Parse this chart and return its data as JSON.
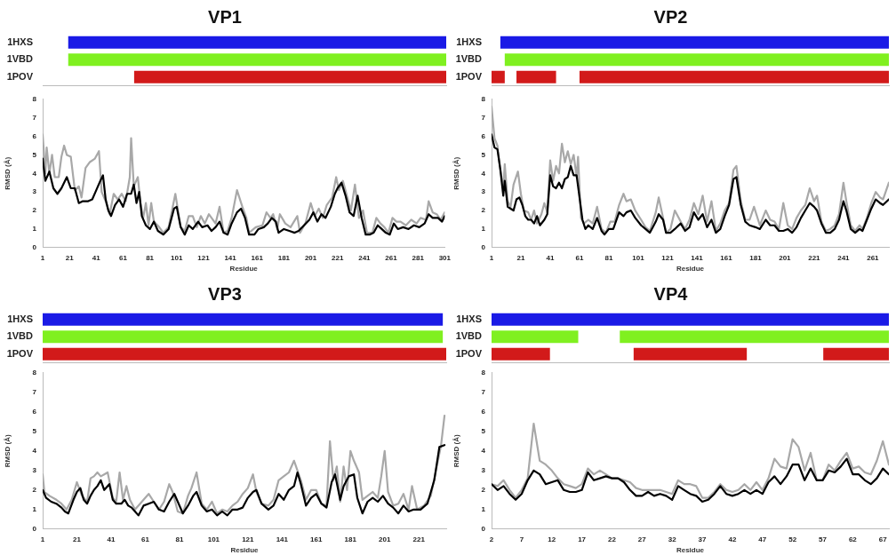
{
  "chart_data": [
    {
      "type": "bar",
      "title": "VP1",
      "orientation": "horizontal",
      "categories": [
        "1HXS",
        "1VBD",
        "1POV"
      ],
      "xlim": [
        1,
        301
      ],
      "tick_labels": "y",
      "legend": false,
      "grid": false,
      "series": [
        {
          "colors": [
            "#1a1ae6",
            "#80f020",
            "#d21a1a"
          ],
          "base": [
            20,
            20,
            69
          ],
          "values": [
            281,
            281,
            232
          ]
        }
      ]
    },
    {
      "type": "line",
      "xlabel": "Residue",
      "ylabel": "RMSD (Å)",
      "xlim": [
        1,
        301
      ],
      "xticks": [
        1,
        21,
        41,
        61,
        81,
        101,
        121,
        141,
        161,
        181,
        201,
        221,
        241,
        261,
        281,
        301
      ],
      "ylim": [
        0,
        8
      ],
      "yticks": [
        0,
        1,
        2,
        3,
        4,
        5,
        6,
        7,
        8
      ],
      "grid": false,
      "legend": false,
      "marker": "none",
      "series": [
        {
          "color": "#000000",
          "x": [
            1,
            3,
            6,
            9,
            12,
            15,
            19,
            22,
            25,
            28,
            31,
            35,
            38,
            41,
            44,
            46,
            48,
            50,
            52,
            55,
            58,
            61,
            64,
            67,
            69,
            71,
            73,
            75,
            78,
            81,
            84,
            87,
            91,
            95,
            99,
            101,
            104,
            107,
            110,
            113,
            117,
            120,
            124,
            127,
            130,
            133,
            136,
            139,
            142,
            146,
            149,
            152,
            155,
            159,
            162,
            166,
            169,
            172,
            175,
            177,
            181,
            185,
            189,
            192,
            196,
            200,
            203,
            206,
            209,
            212,
            216,
            219,
            221,
            224,
            227,
            230,
            233,
            236,
            239,
            242,
            245,
            248,
            251,
            254,
            257,
            260,
            263,
            266,
            270,
            274,
            278,
            282,
            286,
            289,
            292,
            296,
            299,
            301
          ],
          "values": [
            4.8,
            3.6,
            4.1,
            3.2,
            2.9,
            3.2,
            3.8,
            3.2,
            3.2,
            2.4,
            2.5,
            2.5,
            2.6,
            3.1,
            3.6,
            3.9,
            2.6,
            2.0,
            1.7,
            2.3,
            2.6,
            2.2,
            2.9,
            2.9,
            3.4,
            2.4,
            3.0,
            1.7,
            1.2,
            1.0,
            1.4,
            0.9,
            0.7,
            1.0,
            2.1,
            2.2,
            1.1,
            0.7,
            1.2,
            1.0,
            1.4,
            1.1,
            1.2,
            0.9,
            1.1,
            1.4,
            0.8,
            0.7,
            1.3,
            1.9,
            2.1,
            1.6,
            0.7,
            0.7,
            1.0,
            1.1,
            1.3,
            1.6,
            1.4,
            0.8,
            1.0,
            0.9,
            0.8,
            0.9,
            1.2,
            1.5,
            1.9,
            1.4,
            1.8,
            1.6,
            2.2,
            2.9,
            3.2,
            3.5,
            2.8,
            1.9,
            1.7,
            2.8,
            1.6,
            0.7,
            0.7,
            0.8,
            1.2,
            1.0,
            0.8,
            0.7,
            1.3,
            1.0,
            1.1,
            1.0,
            1.2,
            1.1,
            1.3,
            1.8,
            1.6,
            1.6,
            1.4,
            1.7
          ]
        },
        {
          "color": "#a8a8a8",
          "x": [
            1,
            3,
            4,
            6,
            8,
            10,
            13,
            15,
            17,
            19,
            22,
            25,
            28,
            30,
            33,
            36,
            40,
            43,
            45,
            48,
            51,
            54,
            57,
            60,
            63,
            66,
            67,
            69,
            72,
            74,
            76,
            78,
            80,
            82,
            84,
            88,
            91,
            95,
            100,
            104,
            107,
            110,
            113,
            116,
            119,
            122,
            125,
            130,
            133,
            136,
            139,
            142,
            146,
            150,
            153,
            155,
            160,
            165,
            168,
            171,
            173,
            176,
            178,
            182,
            186,
            191,
            193,
            197,
            201,
            204,
            207,
            210,
            213,
            217,
            220,
            222,
            225,
            228,
            231,
            234,
            237,
            240,
            243,
            247,
            250,
            253,
            256,
            259,
            262,
            265,
            268,
            272,
            276,
            280,
            283,
            287,
            289,
            292,
            295,
            298,
            301
          ],
          "values": [
            6.1,
            4.0,
            5.4,
            4.0,
            5.0,
            3.8,
            3.8,
            4.9,
            5.5,
            5.0,
            4.9,
            3.1,
            3.3,
            2.7,
            4.3,
            4.6,
            4.8,
            5.2,
            3.0,
            2.5,
            1.8,
            2.9,
            2.6,
            2.9,
            2.5,
            3.8,
            5.9,
            3.3,
            3.8,
            2.4,
            1.6,
            2.4,
            1.2,
            2.4,
            1.4,
            1.1,
            0.8,
            1.1,
            2.9,
            1.1,
            0.9,
            1.7,
            1.7,
            1.1,
            1.7,
            1.3,
            1.8,
            1.3,
            2.2,
            0.8,
            0.9,
            1.6,
            3.1,
            2.2,
            1.6,
            0.8,
            1.1,
            1.2,
            1.9,
            1.6,
            1.8,
            1.0,
            1.8,
            1.3,
            1.1,
            1.7,
            0.8,
            1.3,
            2.4,
            1.7,
            2.1,
            1.6,
            2.3,
            2.7,
            3.8,
            3.1,
            3.6,
            2.8,
            2.0,
            3.4,
            1.6,
            2.0,
            0.8,
            0.8,
            1.6,
            1.3,
            1.1,
            0.8,
            1.6,
            1.4,
            1.4,
            1.2,
            1.5,
            1.3,
            1.6,
            1.5,
            2.5,
            1.9,
            1.8,
            1.5,
            1.9
          ]
        }
      ]
    },
    {
      "type": "bar",
      "title": "VP2",
      "orientation": "horizontal",
      "categories": [
        "1HXS",
        "1VBD",
        "1POV"
      ],
      "xlim": [
        1,
        272
      ],
      "tick_labels": "y",
      "legend": false,
      "grid": false,
      "series": [
        {
          "colors": [
            "#1a1ae6",
            "#80f020",
            "#d21a1a"
          ],
          "base": [
            7,
            10,
            1
          ],
          "values": [
            265,
            262,
            9
          ]
        },
        {
          "colors": [
            "#1a1ae6",
            "#80f020",
            "#d21a1a"
          ],
          "base": [
            null,
            null,
            18
          ],
          "values": [
            null,
            null,
            27
          ]
        },
        {
          "colors": [
            "#1a1ae6",
            "#80f020",
            "#d21a1a"
          ],
          "base": [
            null,
            null,
            61
          ],
          "values": [
            null,
            null,
            211
          ]
        }
      ]
    },
    {
      "type": "line",
      "xlabel": "Residue",
      "ylabel": "RMSD (Å)",
      "xlim": [
        1,
        272
      ],
      "xticks": [
        1,
        21,
        41,
        61,
        81,
        101,
        121,
        141,
        161,
        181,
        201,
        221,
        241,
        261
      ],
      "ylim": [
        0,
        8
      ],
      "yticks": [
        0,
        1,
        2,
        3,
        4,
        5,
        6,
        7,
        8
      ],
      "grid": false,
      "legend": false,
      "marker": "none",
      "series": [
        {
          "color": "#000000",
          "x": [
            1,
            3,
            5,
            7,
            9,
            10,
            12,
            14,
            16,
            18,
            20,
            22,
            24,
            26,
            28,
            30,
            32,
            34,
            37,
            39,
            41,
            43,
            45,
            47,
            49,
            51,
            53,
            55,
            57,
            59,
            61,
            63,
            65,
            67,
            70,
            73,
            76,
            78,
            81,
            84,
            88,
            91,
            93,
            96,
            99,
            103,
            106,
            109,
            113,
            115,
            118,
            120,
            123,
            126,
            130,
            133,
            136,
            139,
            142,
            145,
            148,
            151,
            154,
            157,
            160,
            163,
            166,
            168,
            171,
            174,
            177,
            181,
            184,
            188,
            191,
            194,
            197,
            200,
            203,
            206,
            209,
            212,
            215,
            218,
            221,
            223,
            226,
            229,
            232,
            235,
            238,
            241,
            243,
            246,
            249,
            252,
            254,
            257,
            260,
            263,
            266,
            268,
            272
          ],
          "values": [
            6.1,
            5.4,
            5.3,
            4.2,
            2.8,
            3.6,
            2.2,
            2.1,
            2.0,
            2.6,
            2.7,
            2.3,
            1.7,
            1.5,
            1.5,
            1.3,
            1.7,
            1.2,
            1.5,
            1.8,
            3.9,
            3.3,
            3.2,
            3.5,
            3.2,
            3.7,
            3.8,
            4.4,
            3.9,
            3.9,
            2.7,
            1.5,
            1.0,
            1.2,
            1.0,
            1.6,
            0.9,
            0.7,
            1.0,
            1.0,
            1.9,
            1.7,
            1.9,
            2.0,
            1.6,
            1.2,
            1.0,
            0.8,
            1.4,
            1.8,
            1.5,
            0.8,
            0.8,
            1.0,
            1.3,
            0.9,
            1.1,
            1.9,
            1.5,
            1.8,
            1.1,
            1.5,
            0.8,
            1.0,
            1.7,
            2.3,
            3.7,
            3.8,
            2.3,
            1.4,
            1.2,
            1.1,
            1.0,
            1.5,
            1.2,
            1.2,
            0.9,
            0.9,
            1.0,
            0.8,
            1.1,
            1.6,
            2.0,
            2.4,
            2.2,
            2.0,
            1.3,
            0.8,
            0.8,
            1.0,
            1.5,
            2.5,
            2.0,
            1.0,
            0.8,
            1.0,
            0.9,
            1.5,
            2.1,
            2.6,
            2.4,
            2.3,
            2.6
          ]
        },
        {
          "color": "#a8a8a8",
          "x": [
            1,
            3,
            5,
            7,
            9,
            10,
            12,
            14,
            16,
            19,
            21,
            23,
            26,
            28,
            30,
            32,
            35,
            37,
            39,
            41,
            43,
            45,
            47,
            49,
            51,
            53,
            55,
            57,
            59,
            60,
            62,
            64,
            67,
            70,
            73,
            76,
            79,
            82,
            85,
            88,
            91,
            93,
            96,
            99,
            103,
            106,
            109,
            113,
            115,
            118,
            120,
            123,
            126,
            130,
            133,
            136,
            139,
            142,
            145,
            148,
            151,
            154,
            157,
            160,
            163,
            166,
            168,
            171,
            174,
            177,
            180,
            184,
            188,
            191,
            194,
            197,
            200,
            203,
            206,
            209,
            212,
            215,
            218,
            221,
            223,
            226,
            229,
            232,
            235,
            238,
            241,
            243,
            246,
            249,
            252,
            254,
            257,
            260,
            263,
            266,
            268,
            272
          ],
          "values": [
            7.6,
            5.9,
            5.5,
            4.2,
            3.2,
            4.5,
            2.5,
            2.2,
            3.4,
            4.1,
            2.9,
            2.0,
            1.9,
            1.5,
            2.0,
            1.3,
            1.8,
            2.4,
            1.9,
            4.7,
            3.6,
            4.4,
            4.0,
            5.6,
            4.6,
            5.2,
            4.5,
            5.0,
            3.8,
            4.9,
            1.6,
            1.3,
            1.5,
            1.3,
            2.2,
            1.0,
            0.8,
            1.4,
            1.4,
            2.3,
            2.9,
            2.5,
            2.6,
            2.0,
            1.5,
            1.1,
            0.9,
            1.9,
            2.7,
            1.6,
            0.8,
            1.0,
            2.0,
            1.4,
            1.0,
            1.5,
            2.4,
            1.8,
            2.8,
            1.4,
            2.5,
            0.9,
            1.3,
            2.0,
            2.4,
            4.2,
            4.4,
            2.5,
            1.5,
            1.5,
            2.2,
            1.2,
            2.0,
            1.5,
            1.4,
            1.0,
            2.4,
            1.2,
            1.0,
            1.6,
            2.0,
            2.3,
            3.2,
            2.5,
            2.8,
            1.4,
            0.9,
            1.0,
            1.2,
            1.8,
            3.5,
            2.5,
            1.2,
            0.9,
            1.2,
            1.0,
            1.6,
            2.4,
            3.0,
            2.7,
            2.6,
            3.5
          ]
        }
      ]
    },
    {
      "type": "bar",
      "title": "VP3",
      "orientation": "horizontal",
      "categories": [
        "1HXS",
        "1VBD",
        "1POV"
      ],
      "xlim": [
        1,
        237
      ],
      "tick_labels": "y",
      "legend": false,
      "grid": false,
      "series": [
        {
          "colors": [
            "#1a1ae6",
            "#80f020",
            "#d21a1a"
          ],
          "base": [
            1,
            1,
            1
          ],
          "values": [
            234,
            234,
            236
          ]
        }
      ]
    },
    {
      "type": "line",
      "xlabel": "Residue",
      "ylabel": "RMSD (Å)",
      "xlim": [
        1,
        237
      ],
      "xticks": [
        1,
        21,
        41,
        61,
        81,
        101,
        121,
        141,
        161,
        181,
        201,
        221
      ],
      "ylim": [
        0,
        8
      ],
      "yticks": [
        0,
        1,
        2,
        3,
        4,
        5,
        6,
        7,
        8
      ],
      "grid": false,
      "legend": false,
      "marker": "none",
      "series": [
        {
          "color": "#000000",
          "x": [
            1,
            3,
            6,
            9,
            12,
            14,
            16,
            19,
            21,
            23,
            25,
            27,
            29,
            31,
            33,
            35,
            37,
            40,
            42,
            44,
            47,
            49,
            51,
            53,
            55,
            57,
            60,
            63,
            66,
            69,
            72,
            75,
            78,
            80,
            83,
            86,
            89,
            91,
            94,
            97,
            100,
            103,
            106,
            109,
            112,
            115,
            118,
            121,
            124,
            126,
            129,
            133,
            136,
            139,
            142,
            145,
            148,
            150,
            152,
            155,
            158,
            161,
            164,
            167,
            170,
            172,
            175,
            177,
            180,
            183,
            185,
            188,
            191,
            194,
            197,
            200,
            203,
            206,
            209,
            212,
            215,
            218,
            222,
            226,
            230,
            233,
            236
          ],
          "values": [
            2.0,
            1.6,
            1.4,
            1.3,
            1.1,
            0.9,
            0.8,
            1.5,
            1.9,
            2.1,
            1.5,
            1.3,
            1.7,
            2.0,
            2.2,
            2.5,
            2.0,
            2.3,
            1.5,
            1.3,
            1.3,
            1.5,
            1.2,
            1.1,
            0.9,
            0.7,
            1.2,
            1.3,
            1.4,
            1.0,
            0.9,
            1.4,
            1.8,
            1.4,
            0.8,
            1.2,
            1.7,
            1.9,
            1.2,
            0.9,
            1.0,
            0.7,
            0.9,
            0.7,
            1.0,
            1.0,
            1.1,
            1.6,
            1.9,
            2.0,
            1.3,
            1.0,
            1.2,
            1.8,
            1.5,
            2.0,
            2.2,
            2.9,
            2.3,
            1.2,
            1.6,
            1.8,
            1.3,
            1.1,
            2.4,
            2.8,
            1.5,
            2.2,
            2.7,
            2.8,
            1.6,
            0.8,
            1.4,
            1.6,
            1.4,
            1.7,
            1.3,
            1.1,
            0.8,
            1.2,
            0.9,
            1.0,
            1.0,
            1.3,
            2.5,
            4.2,
            4.3
          ]
        },
        {
          "color": "#a8a8a8",
          "x": [
            1,
            2,
            5,
            9,
            12,
            15,
            18,
            21,
            24,
            27,
            29,
            31,
            33,
            35,
            37,
            39,
            42,
            44,
            46,
            48,
            50,
            52,
            55,
            58,
            60,
            63,
            66,
            69,
            72,
            75,
            77,
            80,
            83,
            86,
            88,
            91,
            94,
            97,
            100,
            103,
            106,
            109,
            112,
            115,
            118,
            121,
            124,
            126,
            129,
            133,
            136,
            139,
            142,
            145,
            148,
            150,
            152,
            155,
            158,
            161,
            164,
            167,
            169,
            171,
            173,
            175,
            177,
            179,
            181,
            183,
            186,
            188,
            191,
            194,
            197,
            199,
            201,
            203,
            206,
            209,
            212,
            215,
            217,
            220,
            224,
            228,
            231,
            234,
            236
          ],
          "values": [
            2.8,
            1.9,
            1.7,
            1.5,
            1.3,
            1.0,
            1.5,
            2.4,
            1.7,
            1.4,
            2.6,
            2.7,
            2.9,
            2.7,
            2.8,
            2.9,
            1.6,
            1.4,
            2.9,
            1.5,
            2.2,
            1.5,
            1.0,
            1.3,
            1.5,
            1.8,
            1.4,
            1.0,
            1.4,
            2.3,
            1.9,
            0.9,
            0.8,
            1.7,
            2.1,
            2.9,
            1.3,
            1.0,
            1.4,
            0.8,
            1.0,
            0.9,
            1.2,
            1.4,
            1.8,
            2.1,
            2.8,
            1.9,
            1.3,
            1.2,
            1.5,
            2.5,
            2.7,
            2.9,
            3.5,
            3.0,
            2.5,
            1.5,
            2.0,
            2.0,
            1.3,
            1.2,
            4.5,
            2.5,
            3.2,
            1.4,
            3.2,
            2.0,
            4.0,
            3.5,
            2.9,
            1.5,
            1.7,
            1.9,
            1.6,
            2.7,
            4.0,
            1.9,
            1.2,
            1.3,
            1.8,
            1.0,
            2.2,
            1.0,
            1.2,
            1.7,
            3.0,
            4.3,
            5.8
          ]
        }
      ]
    },
    {
      "type": "bar",
      "title": "VP4",
      "orientation": "horizontal",
      "categories": [
        "1HXS",
        "1VBD",
        "1POV"
      ],
      "xlim": [
        2,
        68
      ],
      "tick_labels": "y",
      "legend": false,
      "grid": false,
      "series": [
        {
          "colors": [
            "#1a1ae6",
            "#80f020",
            "#d21a1a"
          ],
          "base": [
            2,
            2,
            2
          ],
          "values": [
            66,
            14.4,
            9.7
          ]
        },
        {
          "colors": [
            "#1a1ae6",
            "#80f020",
            "#d21a1a"
          ],
          "base": [
            null,
            23.3,
            25.6
          ],
          "values": [
            null,
            44.7,
            18.8
          ]
        },
        {
          "colors": [
            "#1a1ae6",
            "#80f020",
            "#d21a1a"
          ],
          "base": [
            null,
            null,
            57.1
          ],
          "values": [
            null,
            null,
            10.9
          ]
        }
      ]
    },
    {
      "type": "line",
      "xlabel": "Residue",
      "ylabel": "RMSD (Å)",
      "xlim": [
        2,
        68
      ],
      "xticks": [
        2,
        7,
        12,
        17,
        22,
        27,
        32,
        37,
        42,
        47,
        52,
        57,
        62,
        67
      ],
      "ylim": [
        0,
        8
      ],
      "yticks": [
        0,
        1,
        2,
        3,
        4,
        5,
        6,
        7,
        8
      ],
      "grid": false,
      "legend": false,
      "marker": "none",
      "series": [
        {
          "color": "#000000",
          "x": [
            2,
            3,
            4,
            5,
            6,
            7,
            8,
            9,
            10,
            11,
            12,
            13,
            14,
            15,
            16,
            17,
            18,
            19,
            20,
            21,
            22,
            23,
            24,
            25,
            26,
            27,
            28,
            29,
            30,
            31,
            32,
            33,
            34,
            35,
            36,
            37,
            38,
            39,
            40,
            41,
            42,
            43,
            44,
            45,
            46,
            47,
            48,
            49,
            50,
            51,
            52,
            53,
            54,
            55,
            56,
            57,
            58,
            59,
            60,
            61,
            62,
            63,
            64,
            65,
            66,
            67,
            68
          ],
          "values": [
            2.3,
            2.0,
            2.2,
            1.8,
            1.5,
            1.8,
            2.5,
            3.0,
            2.8,
            2.3,
            2.4,
            2.5,
            2.0,
            1.9,
            1.9,
            2.0,
            2.9,
            2.5,
            2.6,
            2.7,
            2.6,
            2.6,
            2.4,
            2.0,
            1.7,
            1.7,
            1.9,
            1.7,
            1.8,
            1.7,
            1.5,
            2.2,
            2.0,
            1.8,
            1.7,
            1.4,
            1.5,
            1.8,
            2.2,
            1.8,
            1.7,
            1.8,
            2.0,
            1.8,
            2.0,
            1.8,
            2.4,
            2.7,
            2.3,
            2.7,
            3.3,
            3.3,
            2.5,
            3.1,
            2.5,
            2.5,
            3.0,
            2.9,
            3.2,
            3.6,
            2.8,
            2.8,
            2.5,
            2.3,
            2.6,
            3.1,
            2.8
          ]
        },
        {
          "color": "#a8a8a8",
          "x": [
            2,
            3,
            4,
            5,
            6,
            7,
            8,
            9,
            10,
            11,
            12,
            13,
            14,
            15,
            16,
            17,
            18,
            19,
            20,
            21,
            22,
            23,
            24,
            25,
            26,
            27,
            28,
            29,
            30,
            31,
            32,
            33,
            34,
            35,
            36,
            37,
            38,
            39,
            40,
            41,
            42,
            43,
            44,
            45,
            46,
            47,
            48,
            49,
            50,
            51,
            52,
            53,
            54,
            55,
            56,
            57,
            58,
            59,
            60,
            61,
            62,
            63,
            64,
            65,
            66,
            67,
            68
          ],
          "values": [
            2.3,
            2.2,
            2.5,
            2.0,
            1.6,
            2.0,
            2.6,
            5.4,
            3.5,
            3.3,
            3.0,
            2.6,
            2.3,
            2.2,
            2.1,
            2.3,
            3.1,
            2.8,
            3.0,
            2.8,
            2.6,
            2.6,
            2.5,
            2.4,
            2.1,
            2.0,
            2.0,
            2.0,
            2.0,
            1.9,
            1.8,
            2.5,
            2.3,
            2.3,
            2.2,
            1.6,
            1.6,
            1.9,
            2.3,
            2.0,
            1.9,
            2.0,
            2.3,
            2.0,
            2.4,
            2.0,
            2.6,
            3.6,
            3.2,
            3.1,
            4.6,
            4.2,
            3.0,
            3.9,
            2.5,
            2.5,
            3.3,
            3.0,
            3.5,
            3.9,
            3.1,
            3.2,
            2.9,
            2.8,
            3.5,
            4.5,
            3.3
          ]
        }
      ]
    }
  ]
}
